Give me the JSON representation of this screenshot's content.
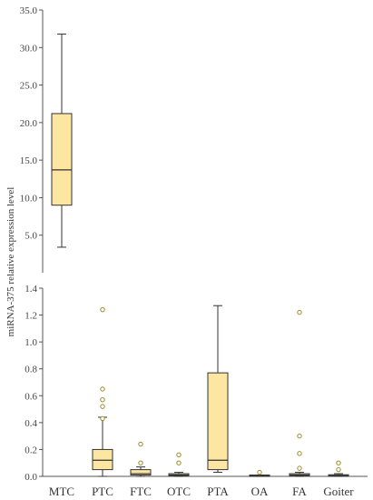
{
  "chart_data": {
    "type": "box",
    "ylabel": "miRNA-375 relative expression level",
    "categories": [
      "MTC",
      "PTC",
      "FTC",
      "OTC",
      "PTA",
      "OA",
      "FA",
      "Goiter"
    ],
    "style": {
      "box_fill": "#FCE6A1",
      "box_stroke": "#333333",
      "outlier_stroke": "#A08A2A",
      "axis_color": "#555555"
    },
    "panels": [
      {
        "id": "upper",
        "ylim": [
          0,
          35
        ],
        "yticks": [
          "5.0",
          "10.0",
          "15.0",
          "20.0",
          "25.0",
          "30.0",
          "35.0"
        ],
        "tick_values": [
          5,
          10,
          15,
          20,
          25,
          30,
          35
        ],
        "boxes": [
          {
            "category": "MTC",
            "min": 3.4,
            "q1": 9.0,
            "median": 13.7,
            "q3": 21.2,
            "max": 31.8,
            "outliers": []
          }
        ]
      },
      {
        "id": "lower",
        "ylim": [
          0,
          1.4
        ],
        "yticks": [
          "0.0",
          "0.2",
          "0.4",
          "0.6",
          "0.8",
          "1.0",
          "1.2",
          "1.4"
        ],
        "tick_values": [
          0,
          0.2,
          0.4,
          0.6,
          0.8,
          1.0,
          1.2,
          1.4
        ],
        "boxes": [
          {
            "category": "PTC",
            "min": 0.0,
            "q1": 0.05,
            "median": 0.12,
            "q3": 0.2,
            "max": 0.44,
            "outliers": [
              0.43,
              0.52,
              0.57,
              0.65,
              1.24
            ]
          },
          {
            "category": "FTC",
            "min": 0.0,
            "q1": 0.01,
            "median": 0.02,
            "q3": 0.05,
            "max": 0.07,
            "outliers": [
              0.1,
              0.24
            ]
          },
          {
            "category": "OTC",
            "min": 0.0,
            "q1": 0.005,
            "median": 0.01,
            "q3": 0.02,
            "max": 0.03,
            "outliers": [
              0.1,
              0.16
            ]
          },
          {
            "category": "PTA",
            "min": 0.03,
            "q1": 0.05,
            "median": 0.12,
            "q3": 0.77,
            "max": 1.27,
            "outliers": []
          },
          {
            "category": "OA",
            "min": 0.0,
            "q1": 0.0,
            "median": 0.005,
            "q3": 0.01,
            "max": 0.01,
            "outliers": [
              0.03
            ]
          },
          {
            "category": "FA",
            "min": 0.0,
            "q1": 0.005,
            "median": 0.01,
            "q3": 0.02,
            "max": 0.03,
            "outliers": [
              0.06,
              0.17,
              0.3,
              1.22
            ]
          },
          {
            "category": "Goiter",
            "min": 0.0,
            "q1": 0.002,
            "median": 0.005,
            "q3": 0.012,
            "max": 0.02,
            "outliers": [
              0.05,
              0.1
            ]
          }
        ]
      }
    ]
  }
}
